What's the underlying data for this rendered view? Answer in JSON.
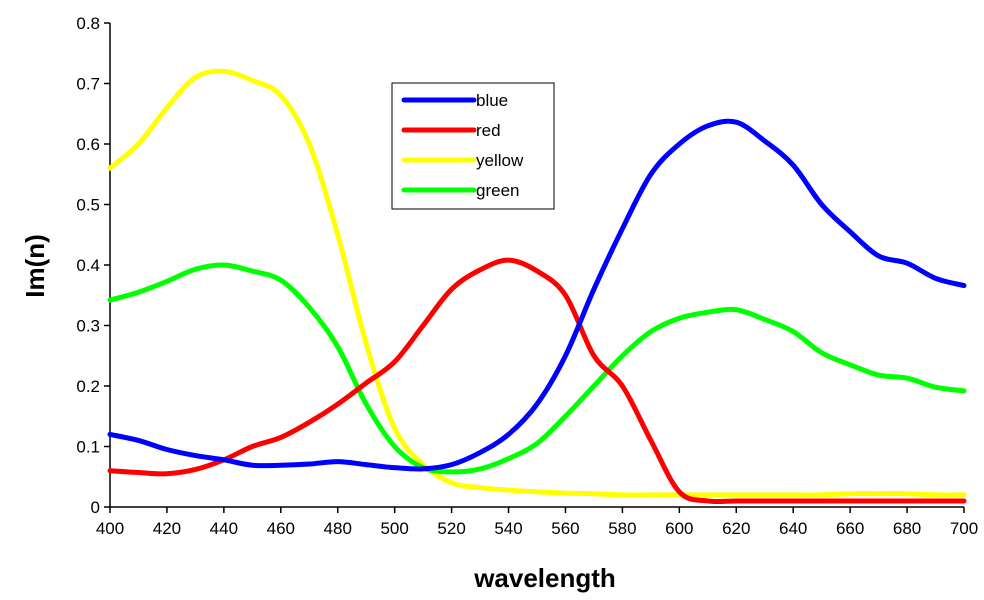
{
  "chart_data": {
    "type": "line",
    "title": "",
    "xlabel": "wavelength",
    "ylabel": "Im(n)",
    "xlim": [
      400,
      700
    ],
    "ylim": [
      0,
      0.8
    ],
    "x_ticks": [
      400,
      420,
      440,
      460,
      480,
      500,
      520,
      540,
      560,
      580,
      600,
      620,
      640,
      660,
      680,
      700
    ],
    "y_ticks": [
      0,
      0.1,
      0.2,
      0.3,
      0.4,
      0.5,
      0.6,
      0.7,
      0.8
    ],
    "grid": false,
    "legend_position": "top-center",
    "x": [
      400,
      410,
      420,
      430,
      440,
      450,
      460,
      470,
      480,
      490,
      500,
      510,
      520,
      530,
      540,
      550,
      560,
      570,
      580,
      590,
      600,
      610,
      620,
      630,
      640,
      650,
      660,
      670,
      680,
      690,
      700
    ],
    "series": [
      {
        "name": "blue",
        "color": "#0000ff",
        "values": [
          0.12,
          0.11,
          0.095,
          0.085,
          0.078,
          0.069,
          0.069,
          0.071,
          0.075,
          0.07,
          0.065,
          0.063,
          0.07,
          0.09,
          0.12,
          0.17,
          0.25,
          0.36,
          0.46,
          0.55,
          0.6,
          0.63,
          0.636,
          0.605,
          0.565,
          0.5,
          0.455,
          0.415,
          0.403,
          0.378,
          0.366
        ]
      },
      {
        "name": "red",
        "color": "#ff0000",
        "values": [
          0.06,
          0.057,
          0.055,
          0.062,
          0.078,
          0.1,
          0.115,
          0.14,
          0.17,
          0.205,
          0.24,
          0.3,
          0.36,
          0.392,
          0.408,
          0.39,
          0.35,
          0.25,
          0.2,
          0.11,
          0.025,
          0.01,
          0.01,
          0.01,
          0.01,
          0.01,
          0.01,
          0.01,
          0.01,
          0.01,
          0.01
        ]
      },
      {
        "name": "yellow",
        "color": "#ffff00",
        "values": [
          0.56,
          0.6,
          0.66,
          0.71,
          0.72,
          0.705,
          0.68,
          0.6,
          0.45,
          0.27,
          0.13,
          0.07,
          0.04,
          0.032,
          0.028,
          0.025,
          0.023,
          0.022,
          0.02,
          0.02,
          0.02,
          0.02,
          0.02,
          0.02,
          0.02,
          0.02,
          0.022,
          0.022,
          0.022,
          0.02,
          0.02
        ]
      },
      {
        "name": "green",
        "color": "#00ff00",
        "values": [
          0.342,
          0.355,
          0.373,
          0.393,
          0.4,
          0.39,
          0.375,
          0.33,
          0.265,
          0.17,
          0.1,
          0.065,
          0.058,
          0.063,
          0.08,
          0.105,
          0.15,
          0.2,
          0.25,
          0.29,
          0.312,
          0.322,
          0.326,
          0.31,
          0.29,
          0.255,
          0.235,
          0.218,
          0.213,
          0.198,
          0.192
        ]
      }
    ]
  }
}
